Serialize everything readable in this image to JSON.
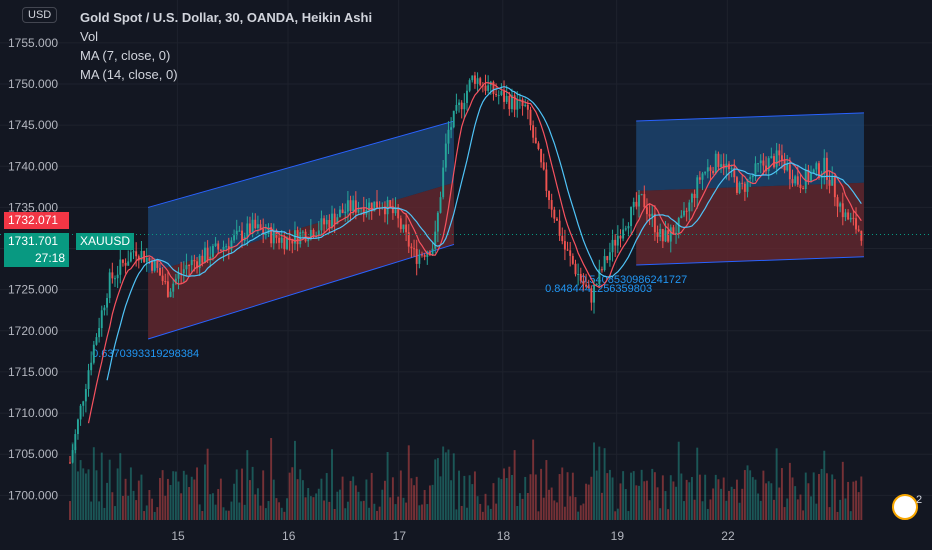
{
  "header": {
    "currency": "USD",
    "title": "Gold Spot / U.S. Dollar, 30, OANDA, Heikin Ashi",
    "indicators": [
      "Vol",
      "MA (7, close, 0)",
      "MA (14, close, 0)"
    ]
  },
  "price_tags": {
    "prev_close": "1732.071",
    "last": "1731.701",
    "countdown": "27:18",
    "symbol": "XAUUSD"
  },
  "badge": "2",
  "colors": {
    "up": "#26a69a",
    "down": "#ef5350",
    "ma7": "#f7525f",
    "ma14": "#4fc3f7",
    "channel_upper": "#1e4a78",
    "channel_lower": "#6b2a30",
    "channel_line": "#2962ff"
  },
  "chart_data": {
    "type": "candlestick",
    "title": "Gold Spot / U.S. Dollar, 30, OANDA, Heikin Ashi",
    "x_ticks": [
      "15",
      "16",
      "17",
      "18",
      "19",
      "22"
    ],
    "y_ticks": [
      1700.0,
      1705.0,
      1710.0,
      1715.0,
      1720.0,
      1725.0,
      1730.0,
      1735.0,
      1740.0,
      1745.0,
      1750.0,
      1755.0
    ],
    "y_tick_labels": [
      "1700.000",
      "1705.000",
      "1710.000",
      "1715.000",
      "1720.000",
      "1725.000",
      "1730.000",
      "1735.000",
      "1740.000",
      "1745.000",
      "1750.000",
      "1755.000"
    ],
    "ylim": [
      1697.0,
      1759.0
    ],
    "price_path": [
      {
        "x": 0.0,
        "y": 1704.0
      },
      {
        "x": 0.3,
        "y": 1716.0
      },
      {
        "x": 0.6,
        "y": 1726.0
      },
      {
        "x": 1.0,
        "y": 1730.0
      },
      {
        "x": 1.3,
        "y": 1728.0
      },
      {
        "x": 1.5,
        "y": 1725.0
      },
      {
        "x": 1.8,
        "y": 1728.0
      },
      {
        "x": 2.3,
        "y": 1730.0
      },
      {
        "x": 2.8,
        "y": 1732.5
      },
      {
        "x": 3.3,
        "y": 1731.0
      },
      {
        "x": 3.8,
        "y": 1732.5
      },
      {
        "x": 4.3,
        "y": 1735.0
      },
      {
        "x": 4.8,
        "y": 1735.5
      },
      {
        "x": 5.0,
        "y": 1734.0
      },
      {
        "x": 5.3,
        "y": 1729.0
      },
      {
        "x": 5.6,
        "y": 1730.5
      },
      {
        "x": 5.8,
        "y": 1744.0
      },
      {
        "x": 6.2,
        "y": 1751.0
      },
      {
        "x": 6.5,
        "y": 1749.0
      },
      {
        "x": 7.0,
        "y": 1747.0
      },
      {
        "x": 7.3,
        "y": 1738.0
      },
      {
        "x": 7.6,
        "y": 1730.0
      },
      {
        "x": 8.0,
        "y": 1724.0
      },
      {
        "x": 8.2,
        "y": 1728.0
      },
      {
        "x": 8.5,
        "y": 1733.0
      },
      {
        "x": 8.8,
        "y": 1736.0
      },
      {
        "x": 9.1,
        "y": 1731.0
      },
      {
        "x": 9.4,
        "y": 1733.0
      },
      {
        "x": 9.7,
        "y": 1739.0
      },
      {
        "x": 10.0,
        "y": 1741.0
      },
      {
        "x": 10.3,
        "y": 1737.0
      },
      {
        "x": 10.6,
        "y": 1740.0
      },
      {
        "x": 10.9,
        "y": 1741.0
      },
      {
        "x": 11.2,
        "y": 1738.0
      },
      {
        "x": 11.6,
        "y": 1740.0
      },
      {
        "x": 11.9,
        "y": 1734.0
      },
      {
        "x": 12.2,
        "y": 1731.7
      }
    ],
    "channels": [
      {
        "x0": 1.2,
        "x1": 5.9,
        "top": [
          1735.0,
          1745.5
        ],
        "mid": [
          1727.0,
          1738.0
        ],
        "bottom": [
          1719.0,
          1730.5
        ],
        "label": "0.6370393319298384"
      },
      {
        "x0": 8.7,
        "x1": 12.2,
        "top": [
          1745.5,
          1746.5
        ],
        "mid": [
          1737.0,
          1738.0
        ],
        "bottom": [
          1728.0,
          1729.0
        ],
        "label": "0.5408530986241727"
      }
    ],
    "extra_label": "0.8484441256359803",
    "series": [
      {
        "name": "Vol",
        "type": "volume"
      },
      {
        "name": "MA (7, close, 0)",
        "type": "line"
      },
      {
        "name": "MA (14, close, 0)",
        "type": "line"
      }
    ],
    "grid": true
  }
}
